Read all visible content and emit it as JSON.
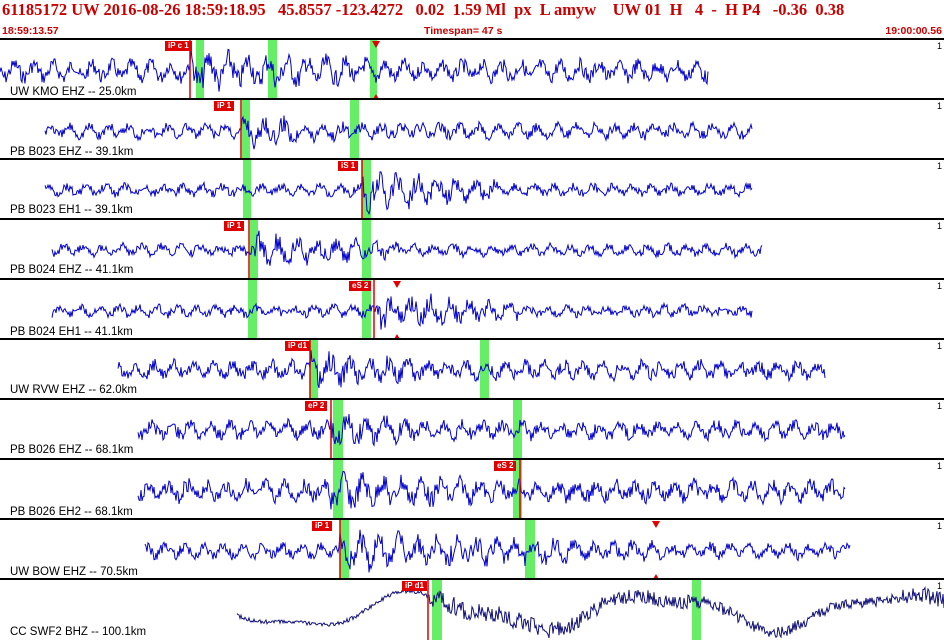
{
  "header": {
    "event_line": "61185172 UW 2016-08-26 18:59:18.95   45.8557 -123.4272   0.02  1.59 Ml  px  L amyw    UW 01  H   4  -  H P4   -0.36  0.38",
    "start_time": "18:59:13.57",
    "timespan": "Timespan=  47 s",
    "end_time": "19:00:00.56"
  },
  "colors": {
    "header_text": "#c80000",
    "trace": "#0000cc",
    "trace_broadband": "#10107a",
    "pick_marker": "#e00000",
    "window_band": "#66ee66"
  },
  "traces": [
    {
      "label": "UW KMO EHZ -- 25.0km",
      "scale": "1",
      "pick": "iP c 1",
      "arrows": true
    },
    {
      "label": "PB B023 EHZ -- 39.1km",
      "scale": "1",
      "pick": "iP 1"
    },
    {
      "label": "PB B023 EH1 -- 39.1km",
      "scale": "1",
      "pick": "iS 1"
    },
    {
      "label": "PB B024 EHZ -- 41.1km",
      "scale": "1",
      "pick": "iP 1"
    },
    {
      "label": "PB B024 EH1 -- 41.1km",
      "scale": "1",
      "pick": "eS 2",
      "arrows": true
    },
    {
      "label": "UW RVW EHZ -- 62.0km",
      "scale": "1",
      "pick": "iP d1"
    },
    {
      "label": "PB B026 EHZ -- 68.1km",
      "scale": "1",
      "pick": "eP 2"
    },
    {
      "label": "PB B026 EH2 -- 68.1km",
      "scale": "1",
      "pick": "eS 2"
    },
    {
      "label": "UW BOW EHZ -- 70.5km",
      "scale": "1",
      "pick": "iP 1",
      "arrows": true
    },
    {
      "label": "CC SWF2 BHZ -- 100.1km",
      "scale": "1",
      "pick": "iP d1"
    }
  ]
}
